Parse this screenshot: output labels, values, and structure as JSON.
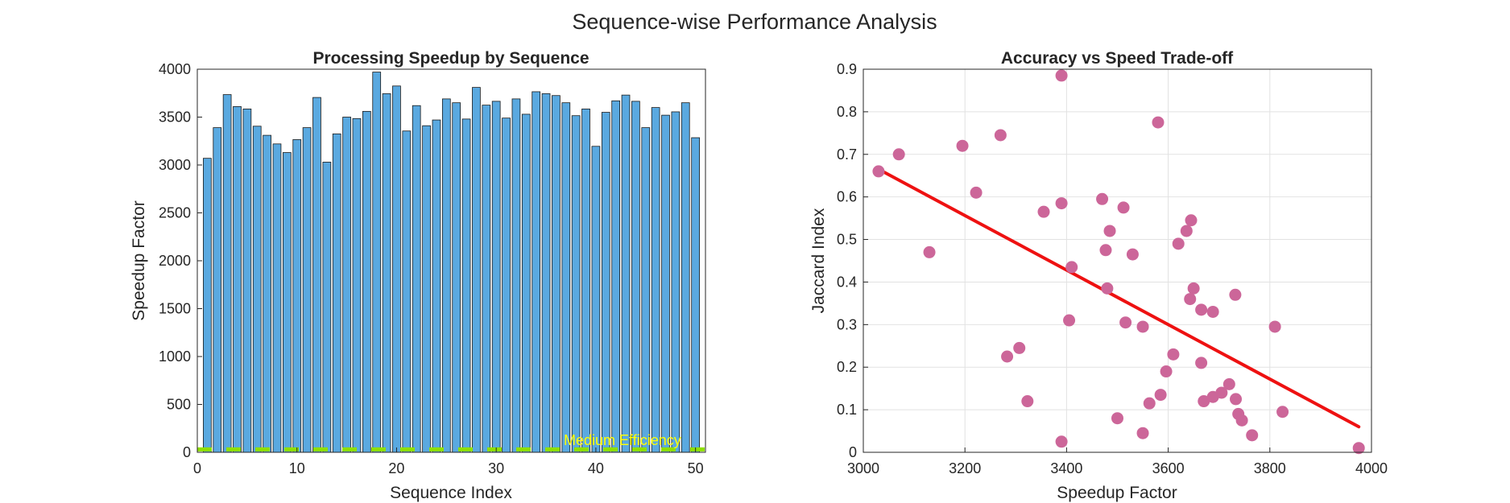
{
  "figure_title": "Sequence-wise Performance Analysis",
  "colors": {
    "bar_fill": "#5aa9e0",
    "bar_edge": "#1a1a1a",
    "threshold_line": "#8ee000",
    "annotation_text": "#ffff00",
    "scatter_fill": "#cc6699",
    "fit_line": "#ee1111",
    "grid": "#e2e2e2",
    "axis": "#262626"
  },
  "chart_data": [
    {
      "type": "bar",
      "title": "Processing Speedup by Sequence",
      "xlabel": "Sequence Index",
      "ylabel": "Speedup Factor",
      "xlim": [
        0,
        51
      ],
      "ylim": [
        0,
        4000
      ],
      "xticks": [
        "0",
        "10",
        "20",
        "30",
        "40",
        "50"
      ],
      "yticks": [
        "0",
        "500",
        "1000",
        "1500",
        "2000",
        "2500",
        "3000",
        "3500",
        "4000"
      ],
      "grid": false,
      "categories": [
        1,
        2,
        3,
        4,
        5,
        6,
        7,
        8,
        9,
        10,
        11,
        12,
        13,
        14,
        15,
        16,
        17,
        18,
        19,
        20,
        21,
        22,
        23,
        24,
        25,
        26,
        27,
        28,
        29,
        30,
        31,
        32,
        33,
        34,
        35,
        36,
        37,
        38,
        39,
        40,
        41,
        42,
        43,
        44,
        45,
        46,
        47,
        48,
        49,
        50
      ],
      "values": [
        3070,
        3390,
        3735,
        3610,
        3585,
        3405,
        3310,
        3220,
        3130,
        3265,
        3390,
        3705,
        3030,
        3325,
        3500,
        3485,
        3560,
        3970,
        3745,
        3825,
        3355,
        3620,
        3410,
        3470,
        3690,
        3650,
        3480,
        3810,
        3625,
        3665,
        3490,
        3690,
        3530,
        3765,
        3745,
        3725,
        3650,
        3515,
        3585,
        3195,
        3550,
        3670,
        3730,
        3665,
        3390,
        3600,
        3520,
        3555,
        3650,
        3285
      ],
      "threshold": {
        "value": 30,
        "style": "dashed"
      },
      "annotation": "Medium Efficiency"
    },
    {
      "type": "scatter",
      "title": "Accuracy vs Speed Trade-off",
      "xlabel": "Speedup Factor",
      "ylabel": "Jaccard Index",
      "xlim": [
        3000,
        4000
      ],
      "ylim": [
        0,
        0.9
      ],
      "xticks": [
        "3000",
        "3200",
        "3400",
        "3600",
        "3800",
        "4000"
      ],
      "yticks": [
        "0",
        "0.1",
        "0.2",
        "0.3",
        "0.4",
        "0.5",
        "0.6",
        "0.7",
        "0.8",
        "0.9"
      ],
      "grid": true,
      "points": [
        {
          "x": 3030,
          "y": 0.66
        },
        {
          "x": 3070,
          "y": 0.7
        },
        {
          "x": 3130,
          "y": 0.47
        },
        {
          "x": 3195,
          "y": 0.72
        },
        {
          "x": 3222,
          "y": 0.61
        },
        {
          "x": 3270,
          "y": 0.745
        },
        {
          "x": 3283,
          "y": 0.225
        },
        {
          "x": 3307,
          "y": 0.245
        },
        {
          "x": 3323,
          "y": 0.12
        },
        {
          "x": 3355,
          "y": 0.565
        },
        {
          "x": 3390,
          "y": 0.885
        },
        {
          "x": 3390,
          "y": 0.585
        },
        {
          "x": 3390,
          "y": 0.025
        },
        {
          "x": 3405,
          "y": 0.31
        },
        {
          "x": 3410,
          "y": 0.435
        },
        {
          "x": 3470,
          "y": 0.595
        },
        {
          "x": 3477,
          "y": 0.475
        },
        {
          "x": 3485,
          "y": 0.52
        },
        {
          "x": 3480,
          "y": 0.385
        },
        {
          "x": 3500,
          "y": 0.08
        },
        {
          "x": 3512,
          "y": 0.575
        },
        {
          "x": 3516,
          "y": 0.305
        },
        {
          "x": 3530,
          "y": 0.465
        },
        {
          "x": 3550,
          "y": 0.295
        },
        {
          "x": 3550,
          "y": 0.045
        },
        {
          "x": 3563,
          "y": 0.115
        },
        {
          "x": 3580,
          "y": 0.775
        },
        {
          "x": 3585,
          "y": 0.135
        },
        {
          "x": 3596,
          "y": 0.19
        },
        {
          "x": 3610,
          "y": 0.23
        },
        {
          "x": 3620,
          "y": 0.49
        },
        {
          "x": 3636,
          "y": 0.52
        },
        {
          "x": 3645,
          "y": 0.545
        },
        {
          "x": 3643,
          "y": 0.36
        },
        {
          "x": 3650,
          "y": 0.385
        },
        {
          "x": 3665,
          "y": 0.335
        },
        {
          "x": 3665,
          "y": 0.21
        },
        {
          "x": 3670,
          "y": 0.12
        },
        {
          "x": 3688,
          "y": 0.33
        },
        {
          "x": 3688,
          "y": 0.13
        },
        {
          "x": 3705,
          "y": 0.14
        },
        {
          "x": 3720,
          "y": 0.16
        },
        {
          "x": 3732,
          "y": 0.37
        },
        {
          "x": 3733,
          "y": 0.125
        },
        {
          "x": 3738,
          "y": 0.09
        },
        {
          "x": 3745,
          "y": 0.075
        },
        {
          "x": 3765,
          "y": 0.04
        },
        {
          "x": 3810,
          "y": 0.295
        },
        {
          "x": 3825,
          "y": 0.095
        },
        {
          "x": 3975,
          "y": 0.01
        }
      ],
      "fit_line": {
        "x": [
          3030,
          3975
        ],
        "y": [
          0.665,
          0.06
        ]
      }
    }
  ]
}
